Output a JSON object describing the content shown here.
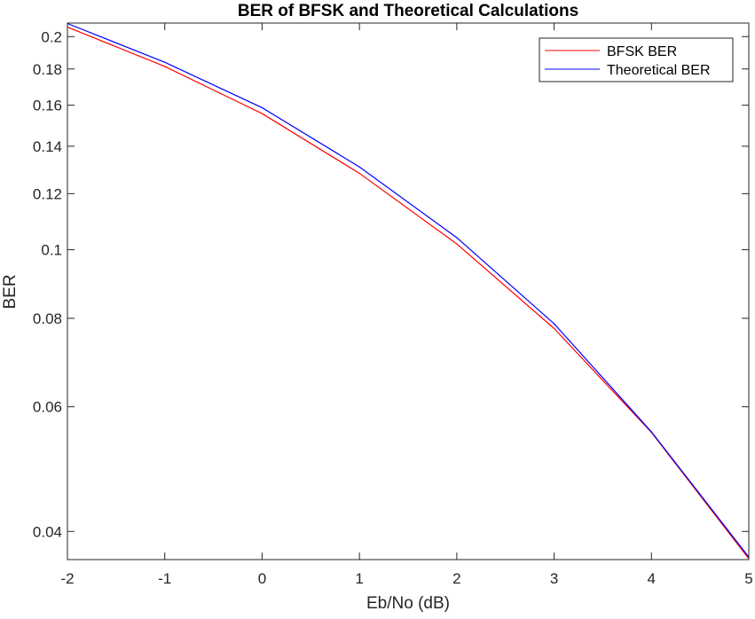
{
  "chart_data": {
    "type": "line",
    "title": "BER of BFSK and Theoretical Calculations",
    "xlabel": "Eb/No (dB)",
    "ylabel": "BER",
    "x": [
      -2,
      -1,
      0,
      1,
      2,
      3,
      4,
      5
    ],
    "series": [
      {
        "name": "BFSK BER",
        "color": "#ff0000",
        "values": [
          0.2063,
          0.1815,
          0.1557,
          0.1282,
          0.1019,
          0.0774,
          0.0552,
          0.0366
        ]
      },
      {
        "name": "Theoretical BER",
        "color": "#0000ff",
        "values": [
          0.2087,
          0.184,
          0.1587,
          0.1309,
          0.104,
          0.0786,
          0.0553,
          0.0368
        ]
      }
    ],
    "xlim": [
      -2,
      5
    ],
    "ylim": [
      0.0365,
      0.209
    ],
    "yscale": "log",
    "xticks": [
      -2,
      -1,
      0,
      1,
      2,
      3,
      4,
      5
    ],
    "xtick_labels": [
      "-2",
      "-1",
      "0",
      "1",
      "2",
      "3",
      "4",
      "5"
    ],
    "yticks": [
      0.04,
      0.06,
      0.08,
      0.1,
      0.12,
      0.14,
      0.16,
      0.18,
      0.2
    ],
    "ytick_labels": [
      "0.04",
      "0.06",
      "0.08",
      "0.1",
      "0.12",
      "0.14",
      "0.16",
      "0.18",
      "0.2"
    ],
    "grid": false,
    "legend_position": "top-right"
  }
}
